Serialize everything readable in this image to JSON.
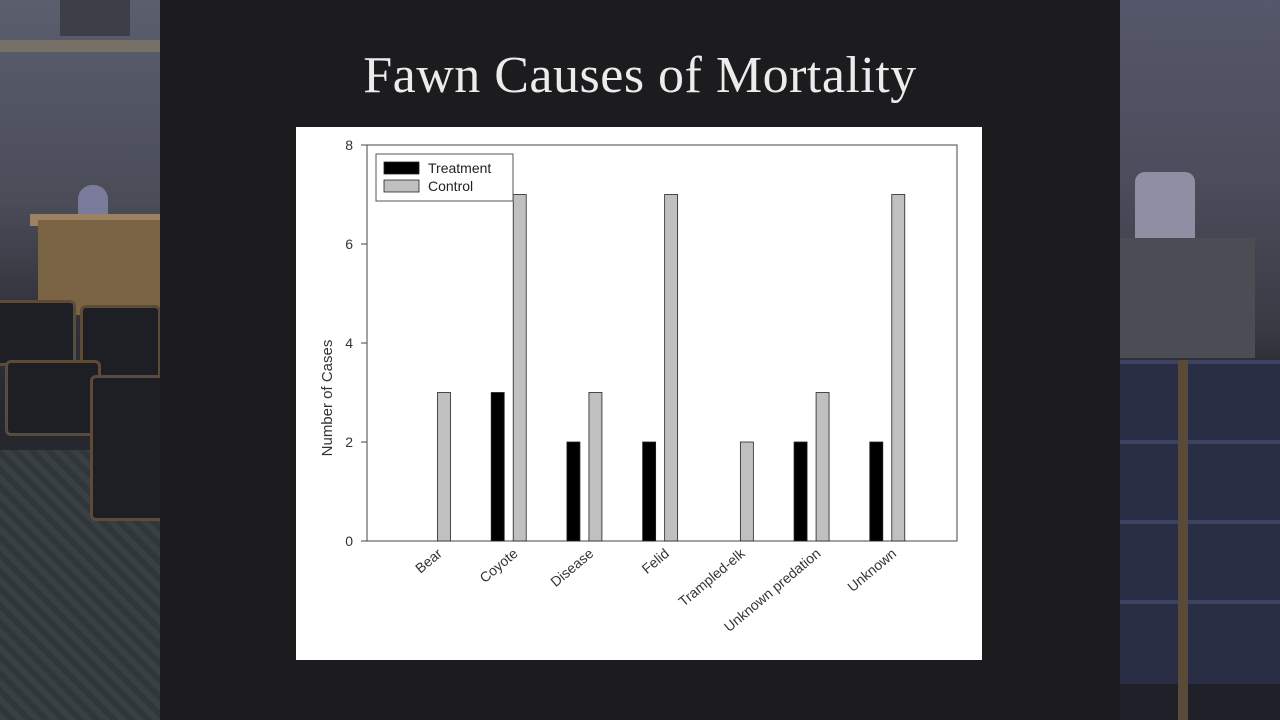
{
  "slide": {
    "title": "Fawn Causes of Mortality"
  },
  "chart_data": {
    "type": "bar",
    "title": "",
    "xlabel": "",
    "ylabel": "Number of Cases",
    "ylim": [
      0,
      8
    ],
    "yticks": [
      0,
      2,
      4,
      6,
      8
    ],
    "grid": false,
    "legend_position": "top-left",
    "categories": [
      "Bear",
      "Coyote",
      "Disease",
      "Felid",
      "Trampled-elk",
      "Unknown predation",
      "Unknown"
    ],
    "series": [
      {
        "name": "Treatment",
        "color": "#000000",
        "values": [
          0,
          3,
          2,
          2,
          0,
          2,
          2
        ]
      },
      {
        "name": "Control",
        "color": "#c0c0c0",
        "values": [
          3,
          7,
          3,
          7,
          2,
          3,
          7
        ]
      }
    ]
  }
}
